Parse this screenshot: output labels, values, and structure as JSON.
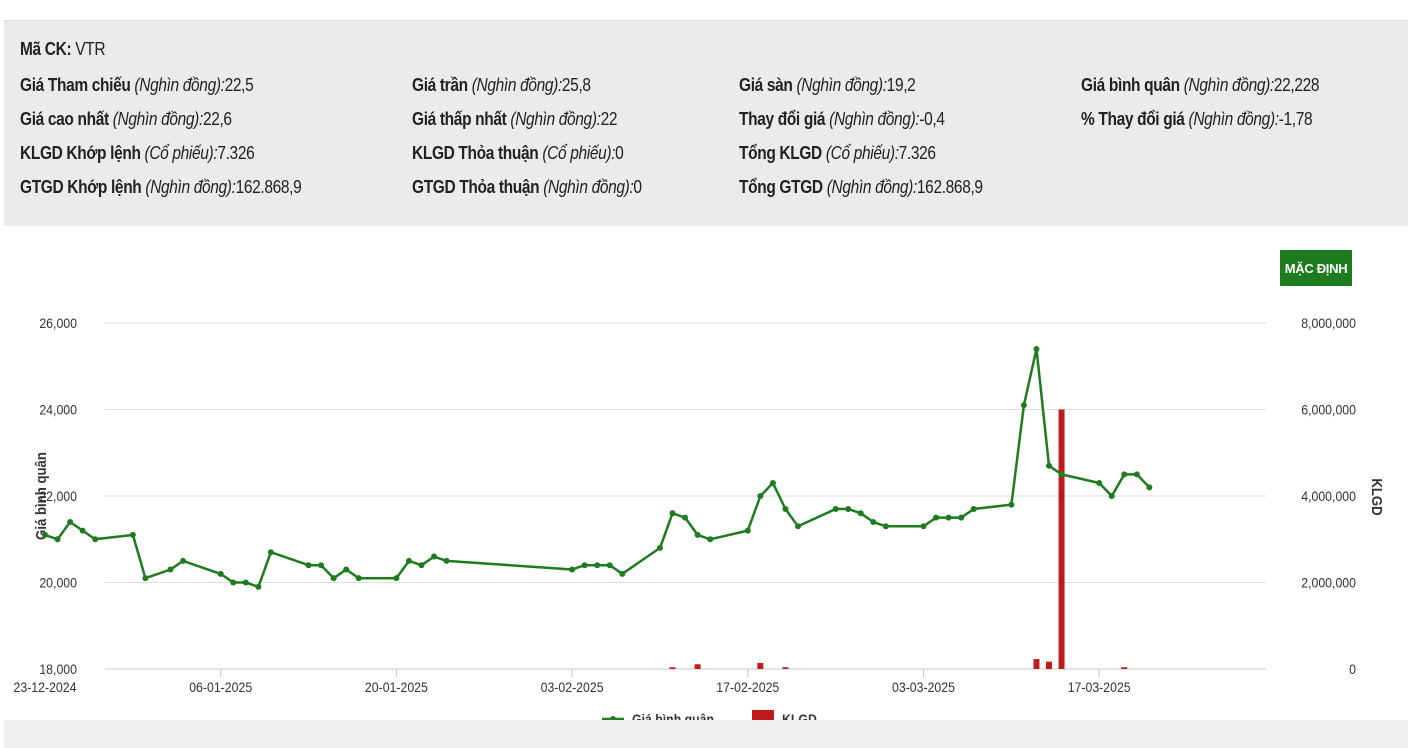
{
  "info": {
    "stock": {
      "label": "Mã CK:",
      "value": "VTR"
    },
    "rows": [
      [
        {
          "label": "Giá Tham chiếu",
          "unit": "(Nghìn đồng):",
          "value": "22,5"
        },
        {
          "label": "Giá trần",
          "unit": "(Nghìn đồng):",
          "value": "25,8"
        },
        {
          "label": "Giá sàn",
          "unit": "(Nghìn đồng):",
          "value": "19,2"
        },
        {
          "label": "Giá bình quân",
          "unit": "(Nghìn đồng):",
          "value": "22,228"
        }
      ],
      [
        {
          "label": "Giá cao nhất",
          "unit": "(Nghìn đồng):",
          "value": "22,6"
        },
        {
          "label": "Giá thấp nhất",
          "unit": "(Nghìn đồng):",
          "value": "22"
        },
        {
          "label": "Thay đổi giá",
          "unit": "(Nghìn đồng):",
          "value": "-0,4"
        },
        {
          "label": "% Thay đổi giá",
          "unit": "(Nghìn đồng):",
          "value": "-1,78"
        }
      ],
      [
        {
          "label": "KLGD Khớp lệnh",
          "unit": "(Cổ phiếu):",
          "value": "7.326"
        },
        {
          "label": "KLGD Thỏa thuận",
          "unit": "(Cổ phiếu):",
          "value": "0"
        },
        {
          "label": "Tổng KLGD",
          "unit": "(Cổ phiếu):",
          "value": "7.326"
        }
      ],
      [
        {
          "label": "GTGD Khớp lệnh",
          "unit": "(Nghìn đồng):",
          "value": "162.868,9"
        },
        {
          "label": "GTGD Thỏa thuận",
          "unit": "(Nghìn đồng):",
          "value": "0"
        },
        {
          "label": "Tổng GTGD",
          "unit": "(Nghìn đồng):",
          "value": "162.868,9"
        }
      ]
    ]
  },
  "controls": {
    "default_button": "MẶC ĐỊNH"
  },
  "chart_data": {
    "type": "line",
    "colors": {
      "price": "#1e7b1e",
      "volume": "#c01b1b",
      "grid": "#dddddd"
    },
    "ylabel": "Giá bình quân",
    "y2label": "KLGD",
    "ylim": [
      18000,
      26000
    ],
    "y2lim": [
      0,
      8000000
    ],
    "yticks": [
      "18,000",
      "20,000",
      "22,000",
      "24,000",
      "26,000"
    ],
    "y2ticks": [
      "0",
      "2,000,000",
      "4,000,000",
      "6,000,000",
      "8,000,000"
    ],
    "xticks": [
      "23-12-2024",
      "06-01-2025",
      "20-01-2025",
      "03-02-2025",
      "17-02-2025",
      "03-03-2025",
      "17-03-2025"
    ],
    "xtick_days": [
      0,
      14,
      28,
      42,
      56,
      70,
      84
    ],
    "legend": {
      "position": "bottom-center",
      "items": [
        "Giá bình quân",
        "KLGD"
      ]
    },
    "series": [
      {
        "name": "Giá bình quân",
        "kind": "line",
        "x_days": [
          0,
          1,
          2,
          3,
          4,
          7,
          8,
          10,
          11,
          14,
          15,
          16,
          17,
          18,
          21,
          22,
          23,
          24,
          25,
          28,
          29,
          30,
          31,
          32,
          42,
          43,
          44,
          45,
          46,
          49,
          50,
          51,
          52,
          53,
          56,
          57,
          58,
          59,
          60,
          63,
          64,
          65,
          66,
          67,
          70,
          71,
          72,
          73,
          74,
          77,
          78,
          79,
          80,
          81,
          84,
          85,
          86,
          87,
          88
        ],
        "values": [
          21100,
          21000,
          21400,
          21200,
          21000,
          21100,
          20100,
          20300,
          20500,
          20200,
          20000,
          20000,
          19900,
          20700,
          20400,
          20400,
          20100,
          20300,
          20100,
          20100,
          20500,
          20400,
          20600,
          20500,
          20300,
          20400,
          20400,
          20400,
          20200,
          20800,
          21600,
          21500,
          21100,
          21000,
          21200,
          22000,
          22300,
          21700,
          21300,
          21700,
          21700,
          21600,
          21400,
          21300,
          21300,
          21500,
          21500,
          21500,
          21700,
          21800,
          24100,
          25400,
          22700,
          22500,
          22300,
          22000,
          22500,
          22500,
          22200
        ]
      },
      {
        "name": "KLGD",
        "kind": "bar",
        "x_days": [
          50,
          52,
          57,
          59,
          79,
          80,
          81,
          86
        ],
        "values": [
          40000,
          110000,
          140000,
          40000,
          230000,
          170000,
          6000000,
          40000
        ]
      }
    ]
  }
}
